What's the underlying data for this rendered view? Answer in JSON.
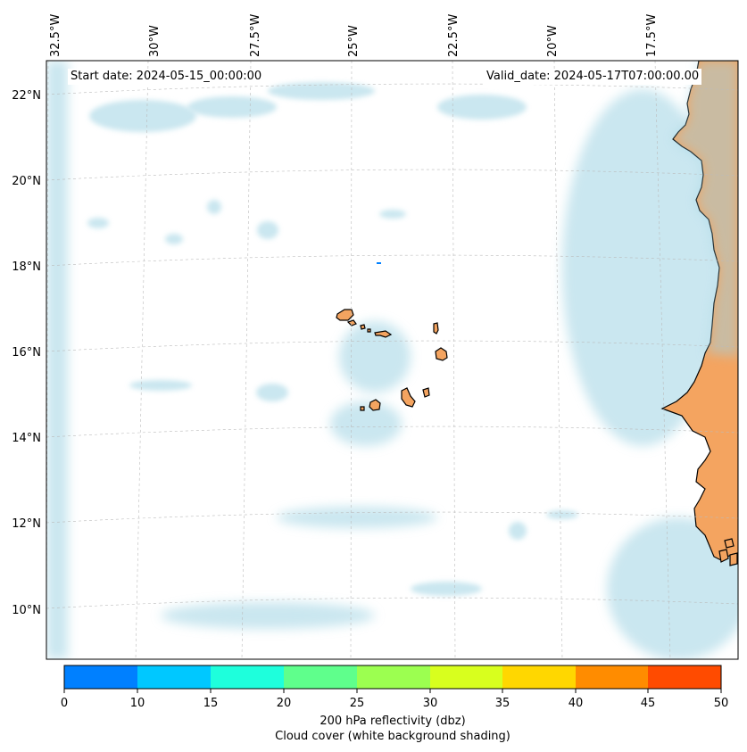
{
  "map": {
    "start_date": "Start date: 2024-05-15_00:00:00",
    "valid_date": "Valid_date: 2024-05-17T07:00:00.00",
    "longitude_labels": [
      "32.5°W",
      "30°W",
      "27.5°W",
      "25°W",
      "22.5°W",
      "20°W",
      "17.5°W"
    ],
    "latitude_labels": [
      "22°N",
      "20°N",
      "18°N",
      "16°N",
      "14°N",
      "12°N",
      "10°N"
    ],
    "land_color": "#f4a460",
    "cloud_color": "#9fd3e3",
    "coast_color": "#000000"
  },
  "colorbar": {
    "ticks": [
      "0",
      "10",
      "15",
      "20",
      "25",
      "30",
      "35",
      "40",
      "45",
      "50"
    ],
    "colors": [
      "#0080ff",
      "#00c8ff",
      "#1effdc",
      "#5fff8c",
      "#9cff50",
      "#d8ff1e",
      "#ffd700",
      "#ff8c00",
      "#ff4b00"
    ],
    "title_line1": "200 hPa reflectivity (dbz)",
    "title_line2": "Cloud cover (white background shading)"
  }
}
